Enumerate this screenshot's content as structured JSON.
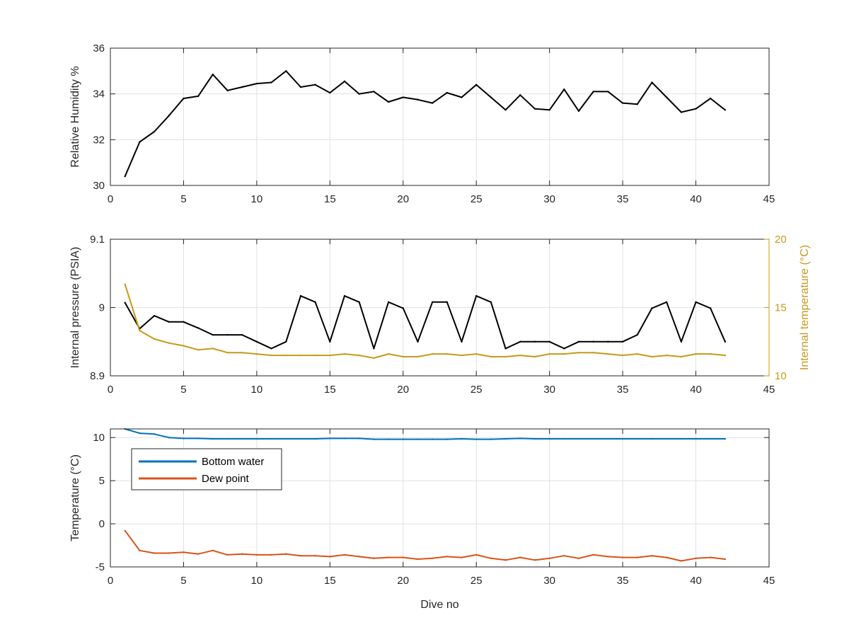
{
  "chart_data": [
    {
      "type": "line",
      "xlabel": "",
      "ylabel": "Relative Humidity %",
      "xlim": [
        0,
        45
      ],
      "ylim": [
        30,
        36
      ],
      "xticks": [
        0,
        5,
        10,
        15,
        20,
        25,
        30,
        35,
        40,
        45
      ],
      "yticks": [
        30,
        32,
        34,
        36
      ],
      "grid": true,
      "series": [
        {
          "color": "#000000",
          "x": [
            1,
            2,
            3,
            4,
            5,
            6,
            7,
            8,
            9,
            10,
            11,
            12,
            13,
            14,
            15,
            16,
            17,
            18,
            19,
            20,
            21,
            22,
            23,
            24,
            25,
            26,
            27,
            28,
            29,
            30,
            31,
            32,
            33,
            34,
            35,
            36,
            37,
            38,
            39,
            40,
            41,
            42
          ],
          "values": [
            30.4,
            31.9,
            32.35,
            33.05,
            33.8,
            33.9,
            34.85,
            34.15,
            34.3,
            34.45,
            34.5,
            35.0,
            34.3,
            34.4,
            34.05,
            34.55,
            34.0,
            34.1,
            33.65,
            33.85,
            33.75,
            33.6,
            34.05,
            33.85,
            34.4,
            33.85,
            33.3,
            33.95,
            33.35,
            33.3,
            34.2,
            33.25,
            34.1,
            34.1,
            33.6,
            33.55,
            34.5,
            33.85,
            33.2,
            33.35,
            33.8,
            33.3
          ]
        }
      ]
    },
    {
      "type": "line",
      "xlabel": "",
      "ylabel": "Internal pressure (PSIA)",
      "ylabel_right": "Internal temperature (°C)",
      "xlim": [
        0,
        45
      ],
      "ylim": [
        8.9,
        9.1
      ],
      "ylim_right": [
        10,
        20
      ],
      "xticks": [
        0,
        5,
        10,
        15,
        20,
        25,
        30,
        35,
        40,
        45
      ],
      "yticks": [
        8.9,
        9,
        9.1
      ],
      "yticks_right": [
        10,
        15,
        20
      ],
      "grid": true,
      "series": [
        {
          "axis": "left",
          "color": "#000000",
          "x": [
            1,
            2,
            3,
            4,
            5,
            6,
            7,
            8,
            9,
            10,
            11,
            12,
            13,
            14,
            15,
            16,
            17,
            18,
            19,
            20,
            21,
            22,
            23,
            24,
            25,
            26,
            27,
            28,
            29,
            30,
            31,
            32,
            33,
            34,
            35,
            36,
            37,
            38,
            39,
            40,
            41,
            42
          ],
          "values": [
            9.007,
            8.969,
            8.988,
            8.979,
            8.979,
            8.97,
            8.96,
            8.96,
            8.96,
            8.95,
            8.94,
            8.95,
            9.017,
            9.008,
            8.95,
            9.017,
            9.008,
            8.94,
            9.008,
            8.999,
            8.95,
            9.008,
            9.008,
            8.95,
            9.017,
            9.008,
            8.94,
            8.95,
            8.95,
            8.95,
            8.94,
            8.95,
            8.95,
            8.95,
            8.95,
            8.96,
            8.999,
            9.008,
            8.95,
            9.008,
            8.999,
            8.95
          ]
        },
        {
          "axis": "right",
          "color": "#c79a1b",
          "x": [
            1,
            2,
            3,
            4,
            5,
            6,
            7,
            8,
            9,
            10,
            11,
            12,
            13,
            14,
            15,
            16,
            17,
            18,
            19,
            20,
            21,
            22,
            23,
            24,
            25,
            26,
            27,
            28,
            29,
            30,
            31,
            32,
            33,
            34,
            35,
            36,
            37,
            38,
            39,
            40,
            41,
            42
          ],
          "values": [
            16.7,
            13.3,
            12.7,
            12.4,
            12.2,
            11.9,
            12.0,
            11.7,
            11.7,
            11.6,
            11.5,
            11.5,
            11.5,
            11.5,
            11.5,
            11.6,
            11.5,
            11.3,
            11.6,
            11.4,
            11.4,
            11.6,
            11.6,
            11.5,
            11.6,
            11.4,
            11.4,
            11.5,
            11.4,
            11.6,
            11.6,
            11.7,
            11.7,
            11.6,
            11.5,
            11.6,
            11.4,
            11.5,
            11.4,
            11.6,
            11.6,
            11.5
          ]
        }
      ]
    },
    {
      "type": "line",
      "xlabel": "Dive no",
      "ylabel": "Temperature (°C)",
      "xlim": [
        0,
        45
      ],
      "ylim": [
        -5,
        11
      ],
      "xticks": [
        0,
        5,
        10,
        15,
        20,
        25,
        30,
        35,
        40,
        45
      ],
      "yticks": [
        -5,
        0,
        5,
        10
      ],
      "grid": true,
      "legend_position": "top-left",
      "series": [
        {
          "name": "Bottom water",
          "color": "#0072bd",
          "x": [
            1,
            2,
            3,
            4,
            5,
            6,
            7,
            8,
            9,
            10,
            11,
            12,
            13,
            14,
            15,
            16,
            17,
            18,
            19,
            20,
            21,
            22,
            23,
            24,
            25,
            26,
            27,
            28,
            29,
            30,
            31,
            32,
            33,
            34,
            35,
            36,
            37,
            38,
            39,
            40,
            41,
            42
          ],
          "values": [
            11.0,
            10.5,
            10.4,
            10.0,
            9.9,
            9.9,
            9.85,
            9.85,
            9.85,
            9.85,
            9.85,
            9.85,
            9.85,
            9.85,
            9.9,
            9.9,
            9.9,
            9.8,
            9.8,
            9.8,
            9.8,
            9.8,
            9.8,
            9.85,
            9.8,
            9.8,
            9.85,
            9.9,
            9.85,
            9.85,
            9.85,
            9.85,
            9.85,
            9.85,
            9.85,
            9.85,
            9.85,
            9.85,
            9.85,
            9.85,
            9.85,
            9.85
          ]
        },
        {
          "name": "Dew point",
          "color": "#d95319",
          "x": [
            1,
            2,
            3,
            4,
            5,
            6,
            7,
            8,
            9,
            10,
            11,
            12,
            13,
            14,
            15,
            16,
            17,
            18,
            19,
            20,
            21,
            22,
            23,
            24,
            25,
            26,
            27,
            28,
            29,
            30,
            31,
            32,
            33,
            34,
            35,
            36,
            37,
            38,
            39,
            40,
            41,
            42
          ],
          "values": [
            -0.8,
            -3.1,
            -3.4,
            -3.4,
            -3.3,
            -3.5,
            -3.1,
            -3.6,
            -3.5,
            -3.6,
            -3.6,
            -3.5,
            -3.7,
            -3.7,
            -3.8,
            -3.6,
            -3.8,
            -4.0,
            -3.9,
            -3.9,
            -4.1,
            -4.0,
            -3.8,
            -3.9,
            -3.6,
            -4.0,
            -4.2,
            -3.9,
            -4.2,
            -4.0,
            -3.7,
            -4.0,
            -3.6,
            -3.8,
            -3.9,
            -3.9,
            -3.7,
            -3.9,
            -4.3,
            -4.0,
            -3.9,
            -4.1
          ]
        }
      ]
    }
  ],
  "colors": {
    "axis": "#262626",
    "grid": "#e1e1e1",
    "right_axis": "#c79a1b"
  }
}
